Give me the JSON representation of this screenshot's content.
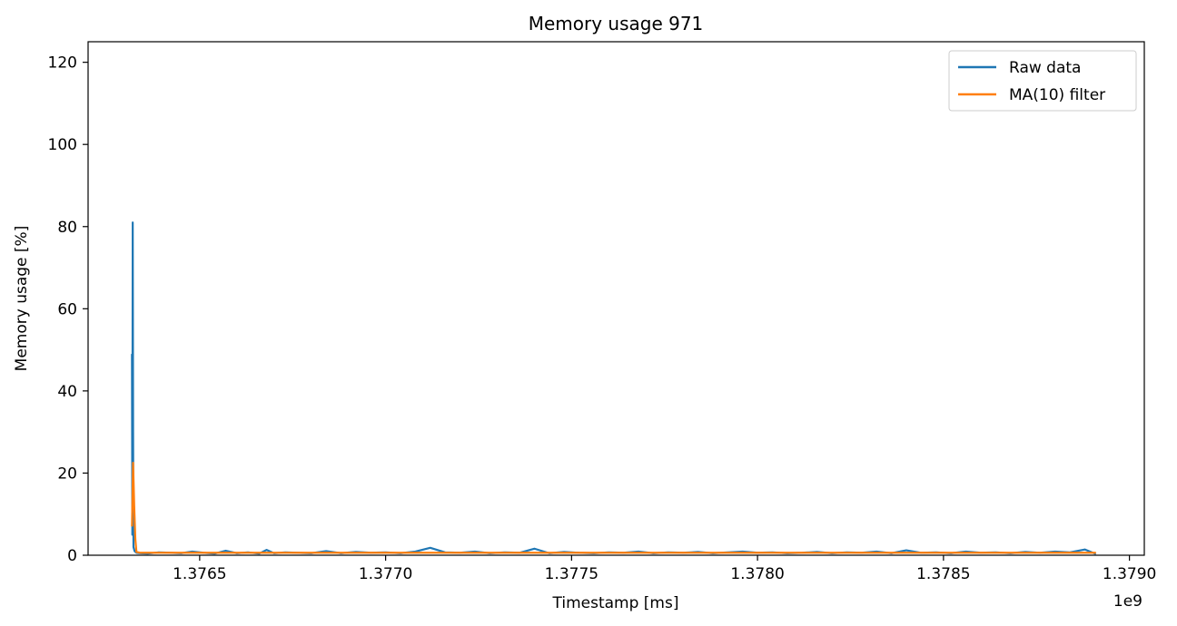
{
  "chart_data": {
    "type": "line",
    "title": "Memory usage 971",
    "xlabel": "Timestamp [ms]",
    "ylabel": "Memory usage [%]",
    "x_offset_label": "1e9",
    "xlim": [
      1.3762,
      1.37904
    ],
    "ylim": [
      0,
      125
    ],
    "x_ticks": [
      1.3765,
      1.377,
      1.3775,
      1.378,
      1.3785,
      1.379
    ],
    "x_tick_labels": [
      "1.3765",
      "1.3770",
      "1.3775",
      "1.3780",
      "1.3785",
      "1.3790"
    ],
    "y_ticks": [
      0,
      20,
      40,
      60,
      80,
      100,
      120
    ],
    "y_tick_labels": [
      "0",
      "20",
      "40",
      "60",
      "80",
      "100",
      "120"
    ],
    "grid": false,
    "legend_position": "top-right",
    "series": [
      {
        "name": "Raw data",
        "color": "#1f77b4",
        "x": [
          1.376318,
          1.376319,
          1.37632,
          1.376321,
          1.376322,
          1.376325,
          1.37633,
          1.37634,
          1.37636,
          1.37639,
          1.37642,
          1.37645,
          1.37648,
          1.37651,
          1.37654,
          1.37657,
          1.3766,
          1.37663,
          1.37666,
          1.37668,
          1.3767,
          1.37673,
          1.37676,
          1.3768,
          1.37684,
          1.37688,
          1.37692,
          1.37696,
          1.377,
          1.37704,
          1.37708,
          1.37712,
          1.37716,
          1.3772,
          1.37724,
          1.37728,
          1.37732,
          1.37736,
          1.3774,
          1.37744,
          1.37748,
          1.37752,
          1.37756,
          1.3776,
          1.37764,
          1.37768,
          1.37772,
          1.37776,
          1.3778,
          1.37784,
          1.37788,
          1.37792,
          1.37796,
          1.378,
          1.37804,
          1.37808,
          1.37812,
          1.37816,
          1.3782,
          1.37824,
          1.37828,
          1.37832,
          1.37836,
          1.3784,
          1.37844,
          1.37848,
          1.37852,
          1.37856,
          1.3786,
          1.37864,
          1.37868,
          1.37872,
          1.37876,
          1.3788,
          1.37884,
          1.37888,
          1.37891
        ],
        "y": [
          49,
          5,
          81,
          30,
          2,
          1,
          0.6,
          0.5,
          0.4,
          0.7,
          0.6,
          0.5,
          0.9,
          0.6,
          0.4,
          1.1,
          0.5,
          0.7,
          0.4,
          1.3,
          0.5,
          0.7,
          0.6,
          0.5,
          1.0,
          0.5,
          0.8,
          0.6,
          0.7,
          0.5,
          0.9,
          1.8,
          0.7,
          0.6,
          0.9,
          0.5,
          0.7,
          0.6,
          1.6,
          0.5,
          0.8,
          0.6,
          0.5,
          0.7,
          0.6,
          0.9,
          0.5,
          0.7,
          0.6,
          0.8,
          0.5,
          0.7,
          0.9,
          0.6,
          0.7,
          0.5,
          0.6,
          0.8,
          0.5,
          0.7,
          0.6,
          0.9,
          0.5,
          1.2,
          0.6,
          0.7,
          0.5,
          0.9,
          0.6,
          0.7,
          0.5,
          0.8,
          0.6,
          0.9,
          0.7,
          1.4,
          0.3
        ]
      },
      {
        "name": "MA(10) filter",
        "color": "#ff7f0e",
        "x": [
          1.376318,
          1.376321,
          1.376324,
          1.376327,
          1.37633,
          1.37634,
          1.3764,
          1.3766,
          1.3768,
          1.377,
          1.3772,
          1.3774,
          1.3776,
          1.3778,
          1.378,
          1.3782,
          1.3784,
          1.3786,
          1.3788,
          1.37891
        ],
        "y": [
          7,
          22.5,
          12,
          4,
          0.8,
          0.6,
          0.6,
          0.6,
          0.6,
          0.6,
          0.6,
          0.6,
          0.6,
          0.6,
          0.6,
          0.6,
          0.6,
          0.6,
          0.6,
          0.6
        ]
      }
    ]
  }
}
